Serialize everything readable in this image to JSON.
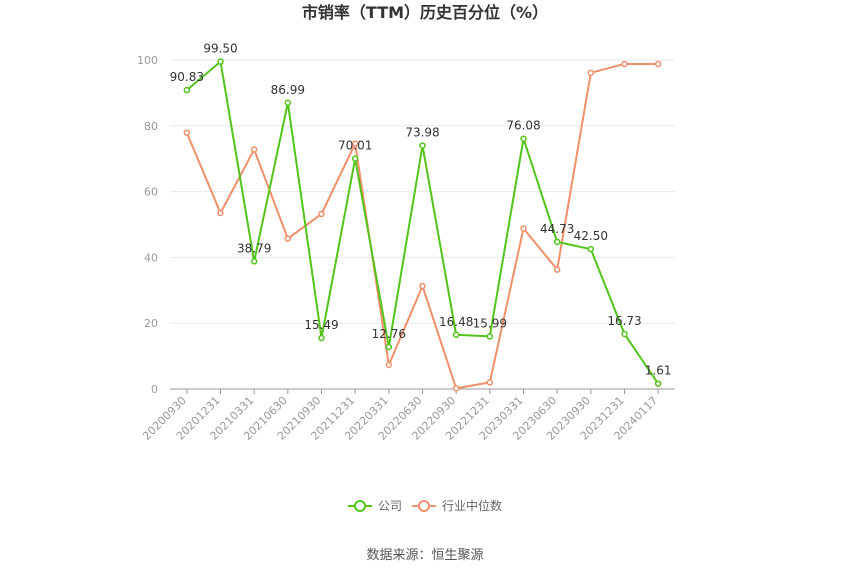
{
  "chart_data": {
    "type": "line",
    "title": "市销率（TTM）历史百分位（%）",
    "x": [
      "20200930",
      "20201231",
      "20210331",
      "20210630",
      "20210930",
      "20211231",
      "20220331",
      "20220630",
      "20220930",
      "20221231",
      "20230331",
      "20230630",
      "20230930",
      "20231231",
      "20240117"
    ],
    "ylim": [
      0,
      100
    ],
    "yticks": [
      0,
      20,
      40,
      60,
      80,
      100
    ],
    "grid": true,
    "legend_position": "bottom",
    "series": [
      {
        "name": "公司",
        "color": "#52c41a",
        "values": [
          90.83,
          99.5,
          38.79,
          86.99,
          15.49,
          70.01,
          12.76,
          73.98,
          16.48,
          15.99,
          76.08,
          44.73,
          42.5,
          16.73,
          1.61
        ],
        "labels": [
          "90.83",
          "99.50",
          "38.79",
          "86.99",
          "15.49",
          "70.01",
          "12.76",
          "73.98",
          "16.48",
          "15.99",
          "76.08",
          "44.73",
          "42.50",
          "16.73",
          "1.61"
        ]
      },
      {
        "name": "行业中位数",
        "color": "#f0906a",
        "values": [
          77.9,
          53.5,
          72.8,
          45.7,
          53.2,
          74.6,
          7.3,
          31.3,
          0.2,
          2.0,
          48.8,
          36.3,
          96.1,
          98.8,
          98.8
        ]
      }
    ]
  },
  "source": "数据来源：恒生聚源"
}
